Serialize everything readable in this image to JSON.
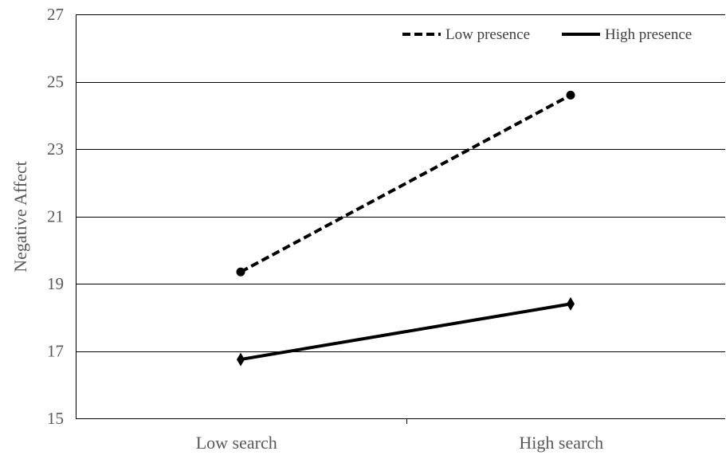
{
  "chart_data": {
    "type": "line",
    "categories": [
      "Low search",
      "High search"
    ],
    "ylabel": "Negative Affect",
    "xlabel": "",
    "ylim": [
      15,
      27
    ],
    "yticks": [
      15,
      17,
      19,
      21,
      23,
      25,
      27
    ],
    "grid": true,
    "legend_position": "top-right",
    "series": [
      {
        "name": "Low presence",
        "values": [
          19.35,
          24.6
        ],
        "line_style": "dashed",
        "marker": "circle",
        "color": "#000000"
      },
      {
        "name": "High presence",
        "values": [
          16.75,
          18.4
        ],
        "line_style": "solid",
        "marker": "diamond",
        "color": "#000000"
      }
    ]
  }
}
